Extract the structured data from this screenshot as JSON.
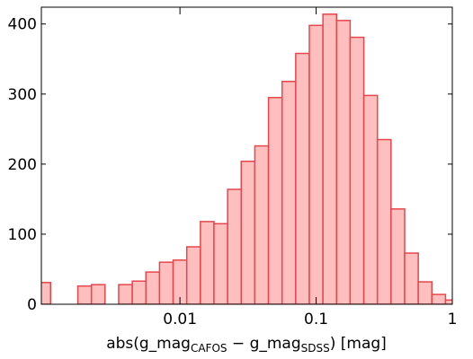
{
  "chart_data": {
    "type": "histogram",
    "xlabel_parts": [
      "abs(g_mag",
      "CAFOS",
      " − g_mag",
      "SDSS",
      ") [mag]"
    ],
    "bins": [
      0.0008913,
      0.001122,
      0.001413,
      0.001778,
      0.002239,
      0.002818,
      0.003548,
      0.004467,
      0.005623,
      0.007079,
      0.008913,
      0.01122,
      0.01413,
      0.01778,
      0.02239,
      0.02818,
      0.03548,
      0.04467,
      0.05623,
      0.07079,
      0.08913,
      0.1122,
      0.1413,
      0.1778,
      0.2239,
      0.2818,
      0.3548,
      0.4467,
      0.5623,
      0.7079,
      0.8913,
      1.122
    ],
    "values": [
      31,
      0,
      0,
      26,
      28,
      0,
      28,
      33,
      46,
      60,
      63,
      82,
      118,
      115,
      164,
      204,
      226,
      295,
      318,
      358,
      398,
      414,
      405,
      381,
      298,
      235,
      136,
      73,
      32,
      14,
      6
    ],
    "color": "#ffbfbf",
    "edgecolor": "#e5474c",
    "xlog": true,
    "xlim": [
      0.00096,
      1
    ],
    "xticks": [
      0.01,
      0.1,
      1
    ],
    "ylim": [
      0,
      424
    ],
    "yticks": [
      0,
      100,
      200,
      300,
      400
    ]
  }
}
